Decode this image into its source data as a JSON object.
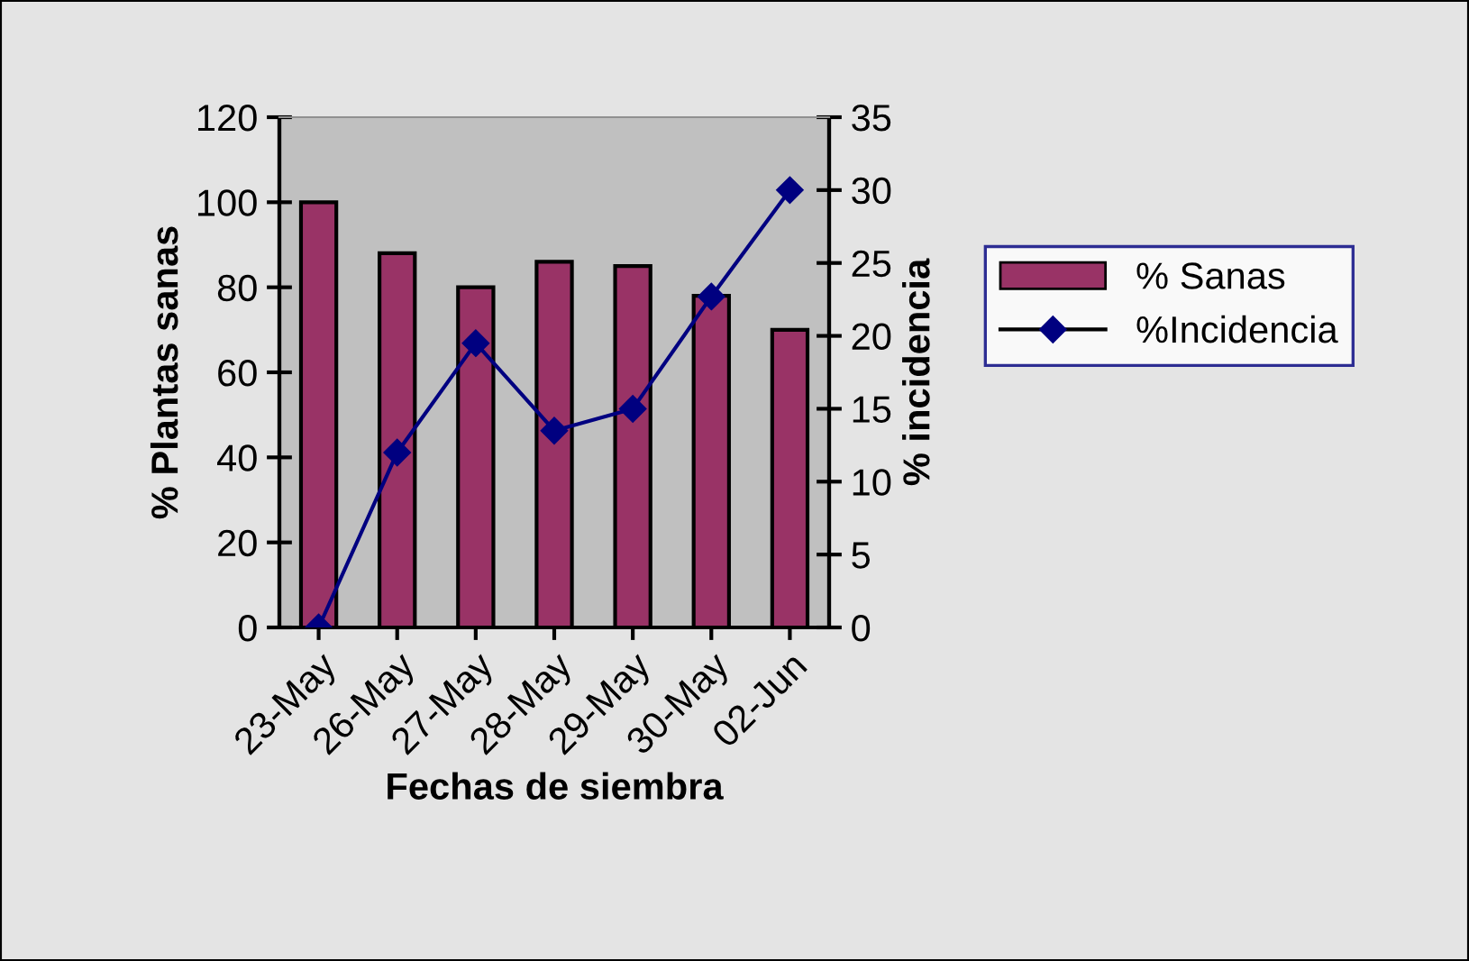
{
  "chart_data": {
    "type": "bar",
    "xlabel": "Fechas de siembra",
    "ylabel": "% Plantas sanas",
    "y2label": "% incidencia",
    "categories": [
      "23-May",
      "26-May",
      "27-May",
      "28-May",
      "29-May",
      "30-May",
      "02-Jun"
    ],
    "series": [
      {
        "name": "% Sanas",
        "color": "#993366",
        "values": [
          100,
          88,
          80,
          86,
          85,
          78,
          70
        ]
      },
      {
        "name": "%Incidencia",
        "type": "line",
        "axis": "y2",
        "color": "#000080",
        "marker": "diamond",
        "values": [
          0,
          12,
          19.5,
          13.5,
          15,
          22.7,
          30
        ]
      }
    ],
    "ylim": [
      0,
      120
    ],
    "yticks": [
      0,
      20,
      40,
      60,
      80,
      100,
      120
    ],
    "y2lim": [
      0,
      35
    ],
    "y2ticks": [
      0,
      5,
      10,
      15,
      20,
      25,
      30,
      35
    ],
    "grid": false,
    "legend": "right"
  }
}
